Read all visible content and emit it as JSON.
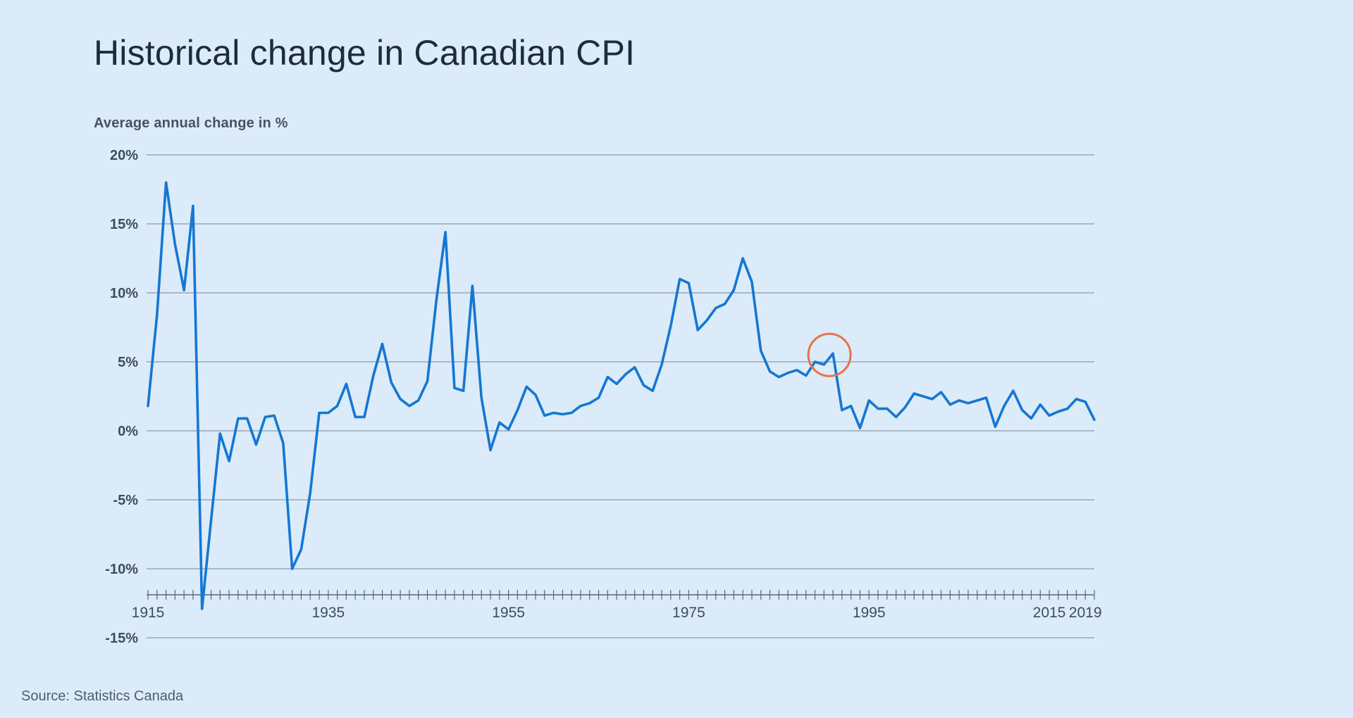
{
  "header": {
    "title": "Historical change in Canadian CPI",
    "subtitle": "Average annual change in %"
  },
  "footer": {
    "source": "Source: Statistics Canada"
  },
  "colors": {
    "background": "#dcebfa",
    "line": "#1577d3",
    "grid": "#79838f",
    "axis_ticks": "#5d6874",
    "axis_text": "#3e4d5c",
    "title_text": "#1d2c3c",
    "annotation": "#e8724a"
  },
  "chart_data": {
    "type": "line",
    "title": "Historical change in Canadian CPI",
    "subtitle": "Average annual change in %",
    "xlabel": "",
    "ylabel": "Average annual change in %",
    "ylim": [
      -15,
      20
    ],
    "grid": "horizontal",
    "legend": false,
    "x": [
      1915,
      1916,
      1917,
      1918,
      1919,
      1920,
      1921,
      1922,
      1923,
      1924,
      1925,
      1926,
      1927,
      1928,
      1929,
      1930,
      1931,
      1932,
      1933,
      1934,
      1935,
      1936,
      1937,
      1938,
      1939,
      1940,
      1941,
      1942,
      1943,
      1944,
      1945,
      1946,
      1947,
      1948,
      1949,
      1950,
      1951,
      1952,
      1953,
      1954,
      1955,
      1956,
      1957,
      1958,
      1959,
      1960,
      1961,
      1962,
      1963,
      1964,
      1965,
      1966,
      1967,
      1968,
      1969,
      1970,
      1971,
      1972,
      1973,
      1974,
      1975,
      1976,
      1977,
      1978,
      1979,
      1980,
      1981,
      1982,
      1983,
      1984,
      1985,
      1986,
      1987,
      1988,
      1989,
      1990,
      1991,
      1992,
      1993,
      1994,
      1995,
      1996,
      1997,
      1998,
      1999,
      2000,
      2001,
      2002,
      2003,
      2004,
      2005,
      2006,
      2007,
      2008,
      2009,
      2010,
      2011,
      2012,
      2013,
      2014,
      2015,
      2016,
      2017,
      2018,
      2019,
      2020
    ],
    "values": [
      1.8,
      8.4,
      18.0,
      13.5,
      10.2,
      16.3,
      -12.9,
      -6.5,
      -0.2,
      -2.2,
      0.9,
      0.9,
      -1.0,
      1.0,
      1.1,
      -0.9,
      -10.0,
      -8.6,
      -4.5,
      1.3,
      1.3,
      1.8,
      3.4,
      1.0,
      1.0,
      4.0,
      6.3,
      3.5,
      2.3,
      1.8,
      2.2,
      3.6,
      9.5,
      14.4,
      3.1,
      2.9,
      10.5,
      2.4,
      -1.4,
      0.6,
      0.1,
      1.5,
      3.2,
      2.6,
      1.1,
      1.3,
      1.2,
      1.3,
      1.8,
      2.0,
      2.4,
      3.9,
      3.4,
      4.1,
      4.6,
      3.3,
      2.9,
      4.8,
      7.6,
      11.0,
      10.7,
      7.3,
      8.0,
      8.9,
      9.2,
      10.2,
      12.5,
      10.8,
      5.8,
      4.3,
      3.9,
      4.2,
      4.4,
      4.0,
      5.0,
      4.8,
      5.6,
      1.5,
      1.8,
      0.2,
      2.2,
      1.6,
      1.6,
      1.0,
      1.7,
      2.7,
      2.5,
      2.3,
      2.8,
      1.9,
      2.2,
      2.0,
      2.2,
      2.4,
      0.3,
      1.8,
      2.9,
      1.5,
      0.9,
      1.9,
      1.1,
      1.4,
      1.6,
      2.3,
      2.1,
      0.8
    ],
    "y_ticks": [
      {
        "label": "20%",
        "value": 20
      },
      {
        "label": "15%",
        "value": 15
      },
      {
        "label": "10%",
        "value": 10
      },
      {
        "label": "5%",
        "value": 5
      },
      {
        "label": "0%",
        "value": 0
      },
      {
        "label": "-5%",
        "value": -5
      },
      {
        "label": "-10%",
        "value": -10
      },
      {
        "label": "-15%",
        "value": -15
      }
    ],
    "x_tick_labels": [
      {
        "label": "1915",
        "year": 1915
      },
      {
        "label": "1935",
        "year": 1935
      },
      {
        "label": "1955",
        "year": 1955
      },
      {
        "label": "1975",
        "year": 1975
      },
      {
        "label": "1995",
        "year": 1995
      },
      {
        "label": "2015",
        "year": 2015
      },
      {
        "label": "2019",
        "year": 2019
      }
    ],
    "annotation": {
      "shape": "circle",
      "year": 1991,
      "value": 5.6,
      "radius": 30,
      "color": "#e8724a"
    },
    "line_color": "#1577d3"
  }
}
